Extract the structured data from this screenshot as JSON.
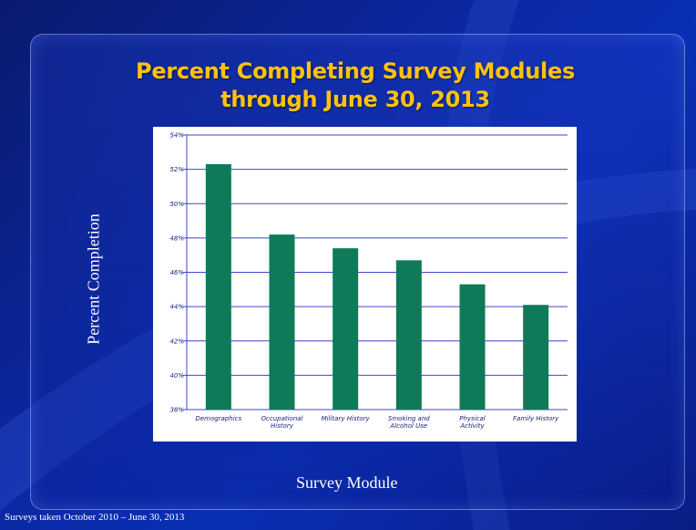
{
  "title_lines": [
    "Percent Completing Survey Modules",
    "through June 30, 2013"
  ],
  "footer": "Surveys taken October 2010 – June 30, 2013",
  "colors": {
    "bar": "#0f7a5a",
    "grid": "#3b46c9",
    "title": "#ffc20e"
  },
  "chart_data": {
    "type": "bar",
    "title": "Percent Completing Survey Modules through June 30, 2013",
    "xlabel": "Survey Module",
    "ylabel": "Percent Completion",
    "categories": [
      [
        "Demographics"
      ],
      [
        "Occupational",
        "History"
      ],
      [
        "Military History"
      ],
      [
        "Smoking and",
        "Alcohol Use"
      ],
      [
        "Physical",
        "Activity"
      ],
      [
        "Family History"
      ]
    ],
    "values": [
      52.3,
      48.2,
      47.4,
      46.7,
      45.3,
      44.1
    ],
    "ylim": [
      38,
      54
    ],
    "yticks": [
      "38%",
      "40%",
      "42%",
      "44%",
      "46%",
      "48%",
      "50%",
      "52%",
      "54%"
    ],
    "grid": true,
    "legend": "none"
  }
}
